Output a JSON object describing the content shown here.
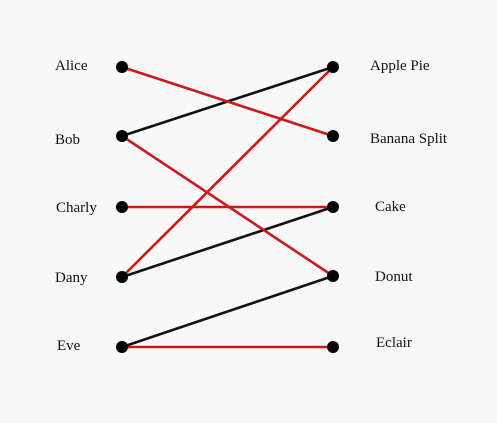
{
  "diagram": {
    "left_nodes": [
      "Alice",
      "Bob",
      "Charly",
      "Dany",
      "Eve"
    ],
    "right_nodes": [
      "Apple Pie",
      "Banana Split",
      "Cake",
      "Donut",
      "Eclair"
    ],
    "colors": {
      "red": "#d01818",
      "black": "#111111",
      "node": "#000000"
    },
    "edges": [
      {
        "from": "Alice",
        "to": "Banana Split",
        "color": "red"
      },
      {
        "from": "Bob",
        "to": "Apple Pie",
        "color": "black"
      },
      {
        "from": "Bob",
        "to": "Donut",
        "color": "red"
      },
      {
        "from": "Charly",
        "to": "Cake",
        "color": "red"
      },
      {
        "from": "Dany",
        "to": "Apple Pie",
        "color": "red"
      },
      {
        "from": "Dany",
        "to": "Cake",
        "color": "black"
      },
      {
        "from": "Eve",
        "to": "Donut",
        "color": "black"
      },
      {
        "from": "Eve",
        "to": "Eclair",
        "color": "red"
      }
    ]
  }
}
